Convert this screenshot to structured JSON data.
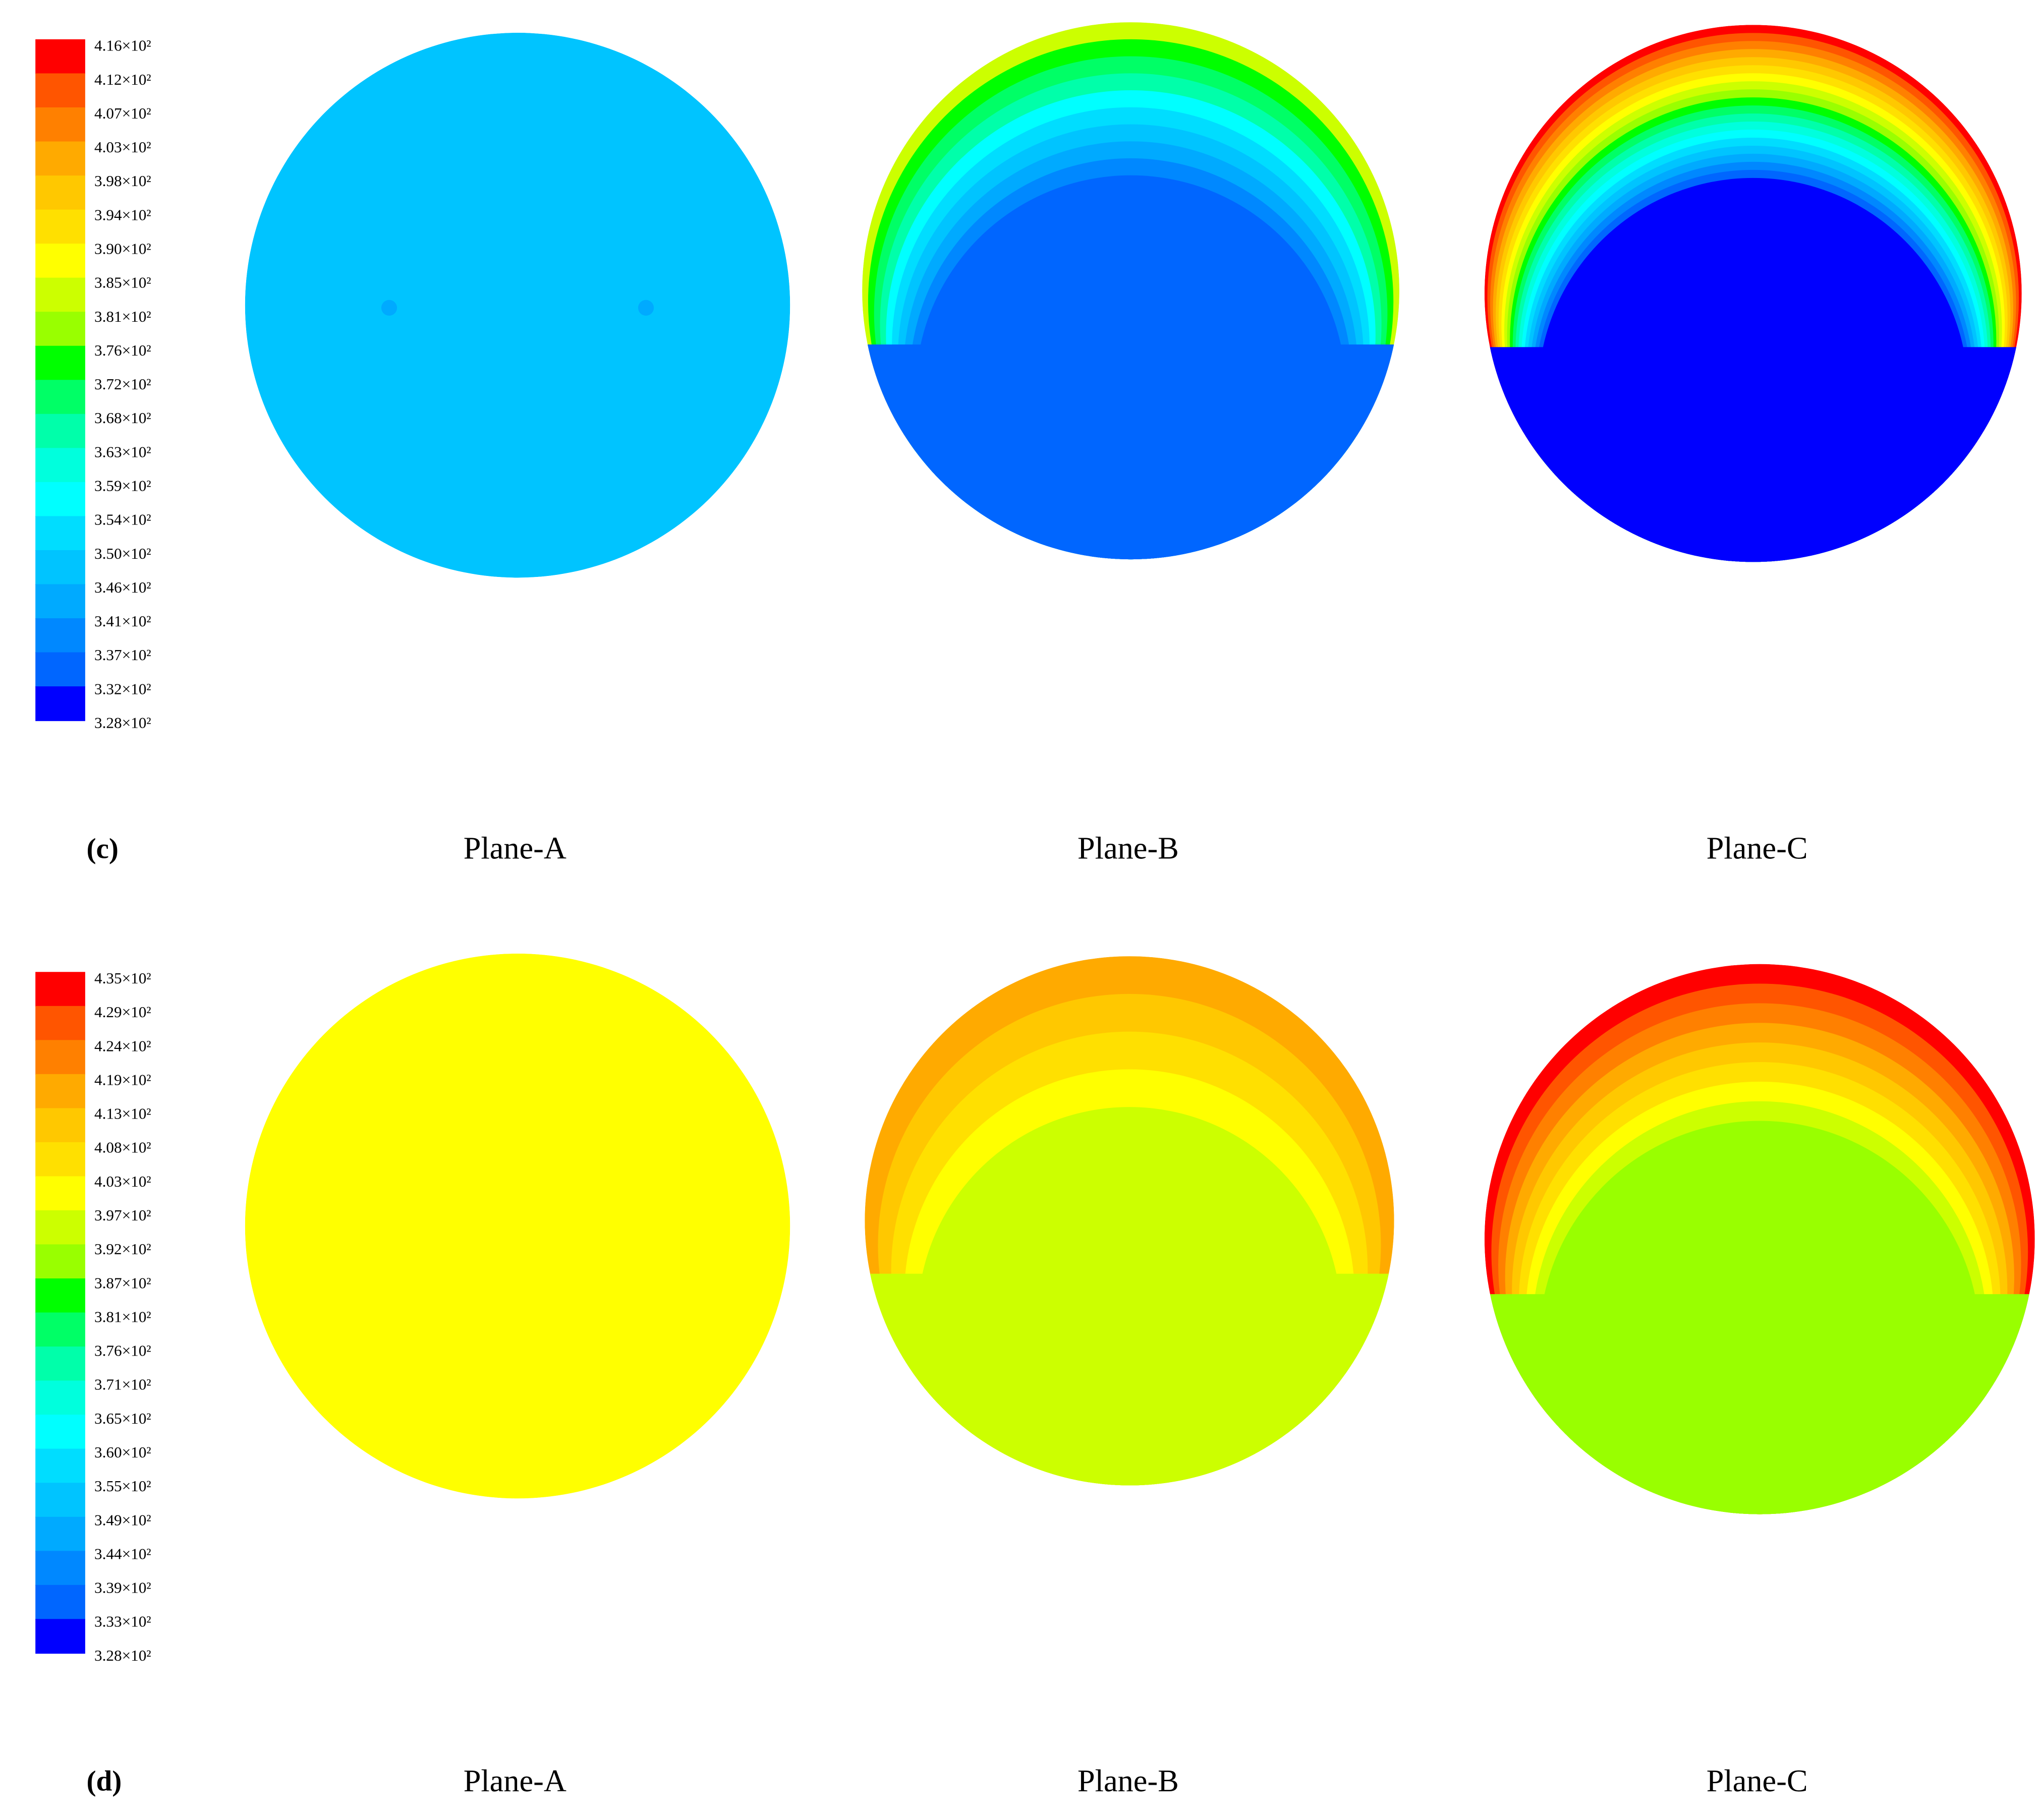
{
  "panels": [
    {
      "label": "(c)",
      "colorbar": {
        "labels": [
          "4.16×10²",
          "4.12×10²",
          "4.07×10²",
          "4.03×10²",
          "3.98×10²",
          "3.94×10²",
          "3.90×10²",
          "3.85×10²",
          "3.81×10²",
          "3.76×10²",
          "3.72×10²",
          "3.68×10²",
          "3.63×10²",
          "3.59×10²",
          "3.54×10²",
          "3.50×10²",
          "3.46×10²",
          "3.41×10²",
          "3.37×10²",
          "3.32×10²",
          "3.28×10²"
        ],
        "colors": [
          "#ff0000",
          "#ff5500",
          "#ff8000",
          "#ffaa00",
          "#ffc800",
          "#ffe000",
          "#ffff00",
          "#ccff00",
          "#99ff00",
          "#00ff00",
          "#00ff66",
          "#00ffaa",
          "#00ffdd",
          "#00ffff",
          "#00ddff",
          "#00c4ff",
          "#00aaff",
          "#0088ff",
          "#0066ff",
          "#0000ff"
        ]
      },
      "planes": [
        "Plane-A",
        "Plane-B",
        "Plane-C"
      ]
    },
    {
      "label": "(d)",
      "colorbar": {
        "labels": [
          "4.35×10²",
          "4.29×10²",
          "4.24×10²",
          "4.19×10²",
          "4.13×10²",
          "4.08×10²",
          "4.03×10²",
          "3.97×10²",
          "3.92×10²",
          "3.87×10²",
          "3.81×10²",
          "3.76×10²",
          "3.71×10²",
          "3.65×10²",
          "3.60×10²",
          "3.55×10²",
          "3.49×10²",
          "3.44×10²",
          "3.39×10²",
          "3.33×10²",
          "3.28×10²"
        ],
        "colors": [
          "#ff0000",
          "#ff5500",
          "#ff8000",
          "#ffaa00",
          "#ffc800",
          "#ffe000",
          "#ffff00",
          "#ccff00",
          "#99ff00",
          "#00ff00",
          "#00ff66",
          "#00ffaa",
          "#00ffdd",
          "#00ffff",
          "#00ddff",
          "#00c4ff",
          "#00aaff",
          "#0088ff",
          "#0066ff",
          "#0000ff"
        ]
      },
      "planes": [
        "Plane-A",
        "Plane-B",
        "Plane-C"
      ]
    }
  ]
}
